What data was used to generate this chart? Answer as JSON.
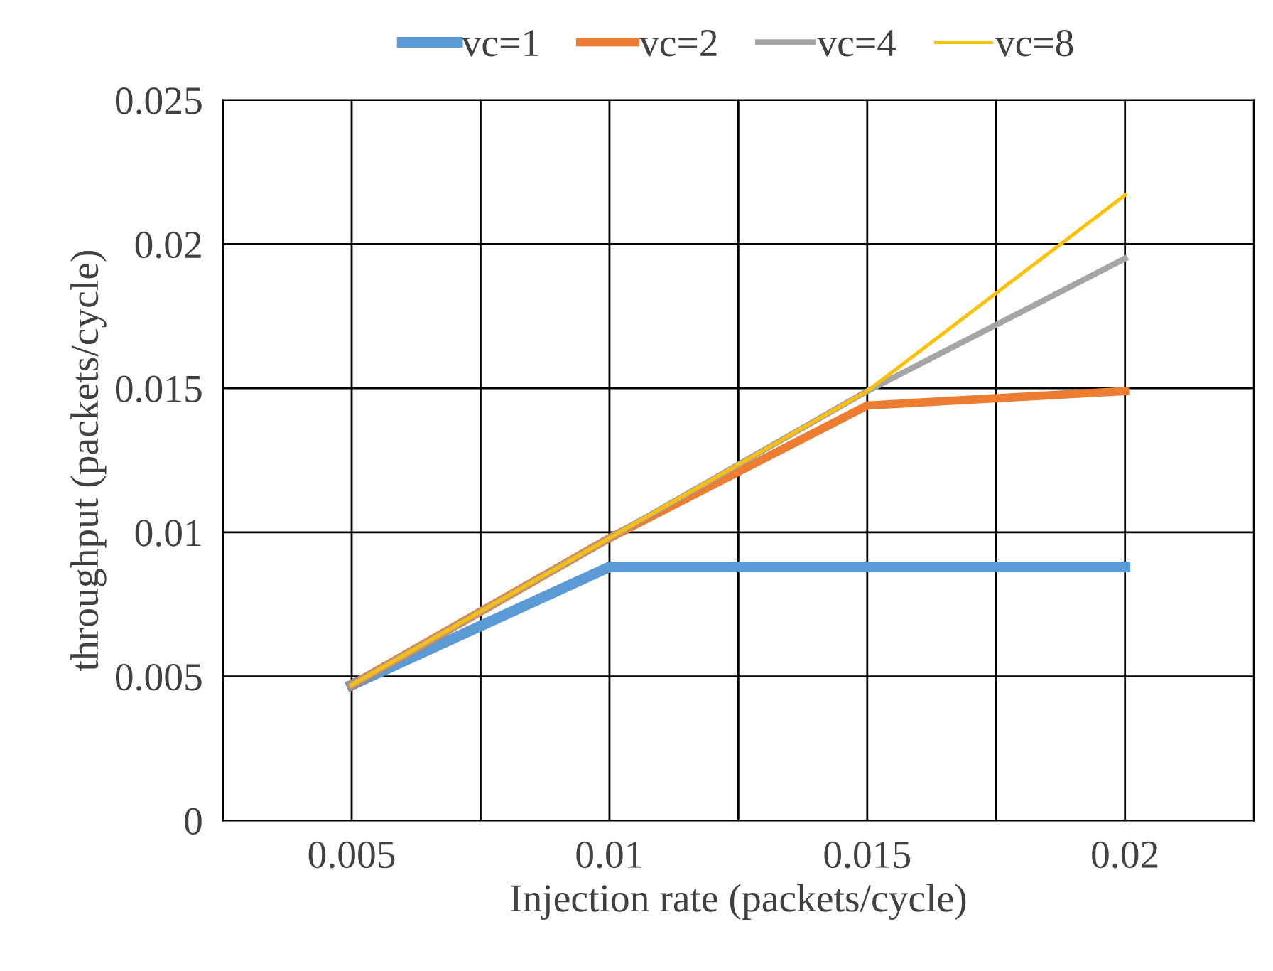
{
  "chart_data": {
    "type": "line",
    "xlabel": "Injection rate (packets/cycle)",
    "ylabel": "throughput (packets/cycle)",
    "categories": [
      "0.005",
      "0.01",
      "0.015",
      "0.02"
    ],
    "series": [
      {
        "name": "vc=1",
        "color": "#5b9bd5",
        "values": [
          0.0047,
          0.0088,
          0.0088,
          0.0088
        ]
      },
      {
        "name": "vc=2",
        "color": "#ed7d31",
        "values": [
          0.0047,
          0.0098,
          0.0144,
          0.0149
        ]
      },
      {
        "name": "vc=4",
        "color": "#a5a5a5",
        "values": [
          0.0047,
          0.0098,
          0.0149,
          0.0195
        ]
      },
      {
        "name": "vc=8",
        "color": "#ffc000",
        "values": [
          0.0047,
          0.0098,
          0.0149,
          0.0217
        ]
      }
    ],
    "ylim": [
      0,
      0.025
    ],
    "yticks": [
      0,
      0.005,
      0.01,
      0.015,
      0.02,
      0.025
    ],
    "grid": true,
    "legend": "top",
    "marker": "none",
    "line_style": "solid"
  }
}
